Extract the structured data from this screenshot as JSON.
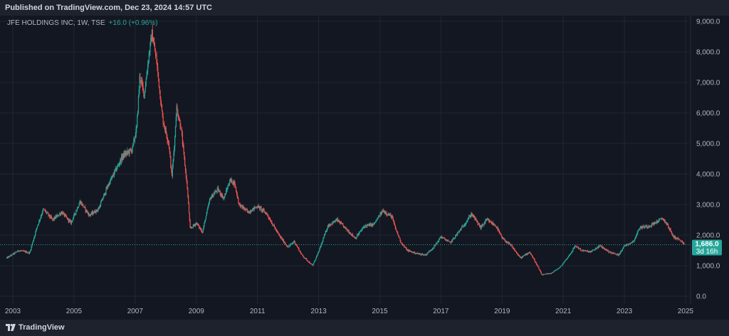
{
  "header": {
    "published": "Published on TradingView.com, Dec 23, 2024 14:57 UTC"
  },
  "legend": {
    "symbol": "JFE HOLDINGS INC, 1W, TSE",
    "change": "+16.0 (+0.96%)"
  },
  "price_label": {
    "value": "1,686.0",
    "countdown": "3d 16h"
  },
  "footer": {
    "brand": "TradingView"
  },
  "colors": {
    "background": "#131722",
    "panel": "#1e222d",
    "up": "#26a69a",
    "down": "#ef5350",
    "grid": "#222631",
    "axis_text": "#b2b5be"
  },
  "chart_data": {
    "type": "candlestick",
    "symbol": "JFE HOLDINGS INC",
    "interval": "1W",
    "exchange": "TSE",
    "last_price": 1686.0,
    "x_range": [
      2002.8,
      2025.0
    ],
    "ylim": [
      0,
      9000
    ],
    "y_ticks": [
      0,
      1000,
      2000,
      3000,
      4000,
      5000,
      6000,
      7000,
      8000,
      9000
    ],
    "y_tick_labels": [
      "0.0",
      "1,000.0",
      "2,000.0",
      "3,000.0",
      "4,000.0",
      "5,000.0",
      "6,000.0",
      "7,000.0",
      "8,000.0",
      "9,000.0"
    ],
    "x_ticks": [
      2003,
      2005,
      2007,
      2009,
      2011,
      2013,
      2015,
      2017,
      2019,
      2021,
      2023,
      2025
    ],
    "x_tick_labels": [
      "2003",
      "2005",
      "2007",
      "2009",
      "2011",
      "2013",
      "2015",
      "2017",
      "2019",
      "2021",
      "2023",
      "2025"
    ],
    "grid": true,
    "price_path": [
      [
        2002.8,
        1250
      ],
      [
        2003.2,
        1500
      ],
      [
        2003.55,
        1420
      ],
      [
        2003.8,
        2300
      ],
      [
        2004.0,
        2850
      ],
      [
        2004.3,
        2500
      ],
      [
        2004.6,
        2750
      ],
      [
        2004.9,
        2400
      ],
      [
        2005.2,
        3100
      ],
      [
        2005.5,
        2650
      ],
      [
        2005.8,
        2850
      ],
      [
        2006.1,
        3600
      ],
      [
        2006.35,
        4100
      ],
      [
        2006.6,
        4600
      ],
      [
        2006.9,
        4800
      ],
      [
        2007.05,
        5500
      ],
      [
        2007.15,
        7200
      ],
      [
        2007.3,
        6600
      ],
      [
        2007.45,
        7900
      ],
      [
        2007.55,
        8600
      ],
      [
        2007.7,
        7700
      ],
      [
        2007.9,
        5800
      ],
      [
        2008.1,
        5000
      ],
      [
        2008.2,
        3900
      ],
      [
        2008.3,
        5200
      ],
      [
        2008.35,
        6200
      ],
      [
        2008.5,
        5500
      ],
      [
        2008.7,
        3600
      ],
      [
        2008.8,
        2200
      ],
      [
        2009.0,
        2400
      ],
      [
        2009.2,
        2100
      ],
      [
        2009.45,
        3200
      ],
      [
        2009.7,
        3500
      ],
      [
        2009.9,
        3200
      ],
      [
        2010.1,
        3800
      ],
      [
        2010.25,
        3700
      ],
      [
        2010.4,
        3000
      ],
      [
        2010.7,
        2750
      ],
      [
        2011.0,
        2950
      ],
      [
        2011.3,
        2700
      ],
      [
        2011.7,
        2000
      ],
      [
        2012.0,
        1600
      ],
      [
        2012.2,
        1800
      ],
      [
        2012.45,
        1350
      ],
      [
        2012.8,
        1000
      ],
      [
        2013.0,
        1450
      ],
      [
        2013.3,
        2300
      ],
      [
        2013.6,
        2500
      ],
      [
        2013.9,
        2200
      ],
      [
        2014.2,
        1900
      ],
      [
        2014.5,
        2300
      ],
      [
        2014.8,
        2350
      ],
      [
        2015.1,
        2800
      ],
      [
        2015.4,
        2600
      ],
      [
        2015.5,
        2250
      ],
      [
        2015.7,
        1750
      ],
      [
        2015.9,
        1500
      ],
      [
        2016.2,
        1400
      ],
      [
        2016.5,
        1350
      ],
      [
        2016.8,
        1650
      ],
      [
        2017.0,
        1950
      ],
      [
        2017.3,
        1750
      ],
      [
        2017.5,
        2000
      ],
      [
        2017.8,
        2400
      ],
      [
        2018.0,
        2700
      ],
      [
        2018.3,
        2250
      ],
      [
        2018.5,
        2500
      ],
      [
        2018.8,
        2300
      ],
      [
        2019.0,
        1900
      ],
      [
        2019.3,
        1650
      ],
      [
        2019.6,
        1250
      ],
      [
        2019.9,
        1450
      ],
      [
        2020.1,
        1100
      ],
      [
        2020.3,
        700
      ],
      [
        2020.6,
        750
      ],
      [
        2020.9,
        950
      ],
      [
        2021.2,
        1350
      ],
      [
        2021.4,
        1650
      ],
      [
        2021.6,
        1500
      ],
      [
        2021.9,
        1450
      ],
      [
        2022.2,
        1650
      ],
      [
        2022.5,
        1450
      ],
      [
        2022.8,
        1350
      ],
      [
        2023.0,
        1650
      ],
      [
        2023.3,
        1800
      ],
      [
        2023.5,
        2250
      ],
      [
        2023.8,
        2300
      ],
      [
        2024.0,
        2400
      ],
      [
        2024.25,
        2550
      ],
      [
        2024.4,
        2350
      ],
      [
        2024.6,
        1950
      ],
      [
        2024.8,
        1850
      ],
      [
        2024.95,
        1686
      ]
    ]
  }
}
